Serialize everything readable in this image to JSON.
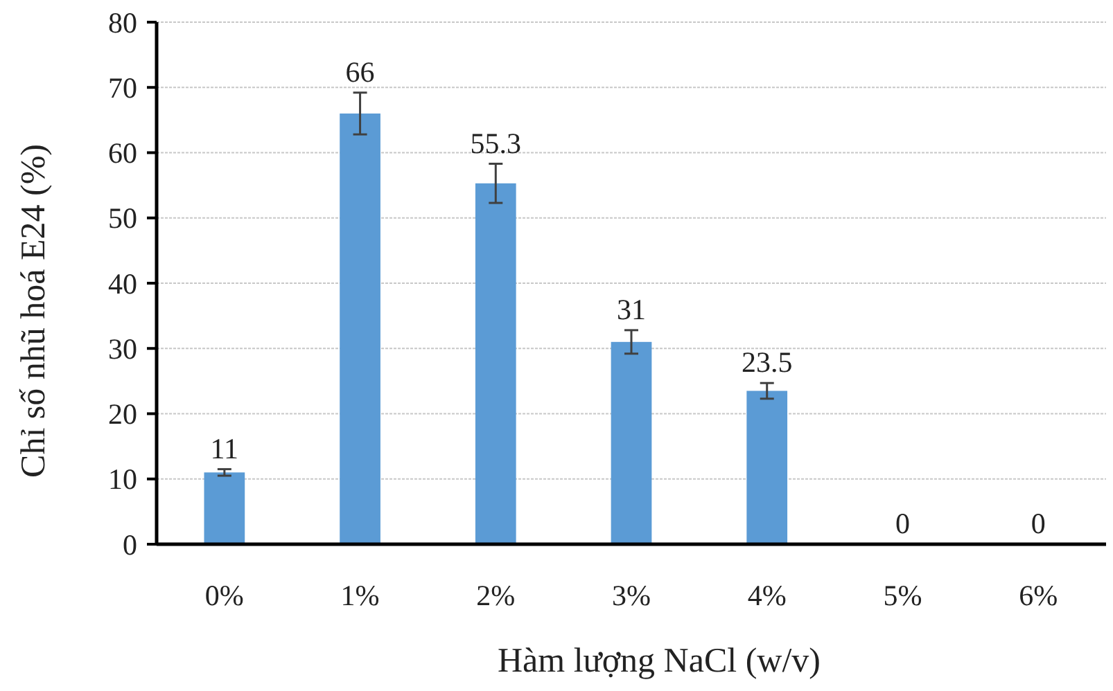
{
  "chart_data": {
    "type": "bar",
    "xlabel": "Hàm lượng NaCl (w/v)",
    "ylabel": "Chỉ số nhũ hoá E24 (%)",
    "categories": [
      "0%",
      "1%",
      "2%",
      "3%",
      "4%",
      "5%",
      "6%"
    ],
    "values": [
      11,
      66,
      55.3,
      31,
      23.5,
      0,
      0
    ],
    "errors": [
      0.5,
      3.2,
      3,
      1.8,
      1.2,
      null,
      null
    ],
    "color": "#5b9bd5",
    "ylim": [
      0,
      80
    ],
    "yticks": [
      0,
      10,
      20,
      30,
      40,
      50,
      60,
      70,
      80
    ],
    "grid": "y",
    "data_labels": true
  }
}
